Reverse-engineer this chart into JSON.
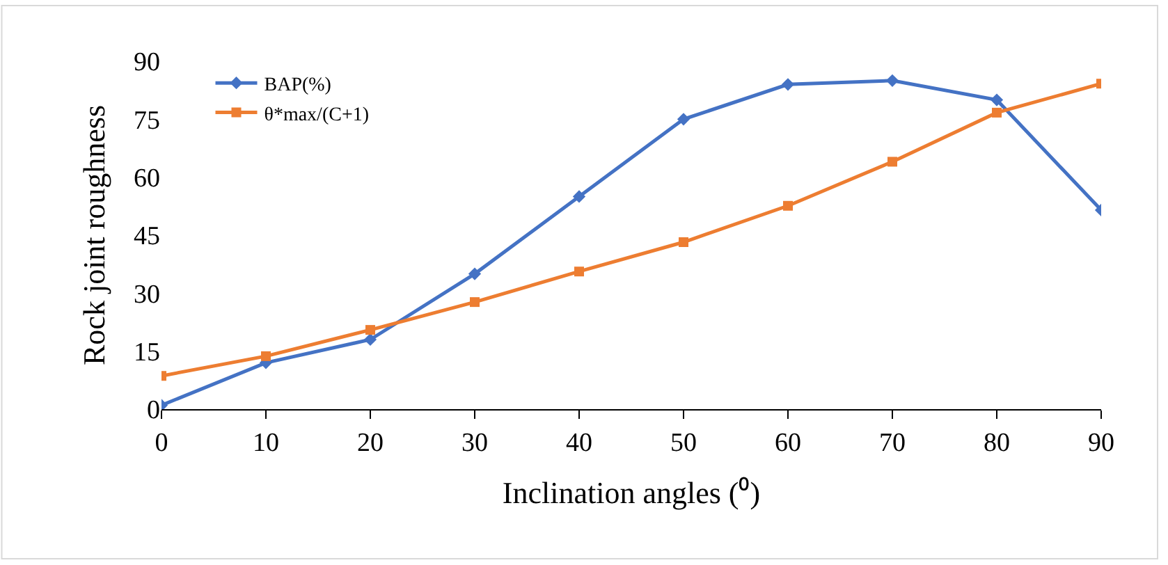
{
  "chart_data": {
    "type": "line",
    "xlabel": "Inclination angles (⁰)",
    "ylabel": "Rock joint roughness",
    "x": [
      0,
      10,
      20,
      30,
      40,
      50,
      60,
      70,
      80,
      90
    ],
    "series": [
      {
        "name": "BAP(%)",
        "color": "#4472c4",
        "marker": "diamond",
        "values": [
          1,
          12,
          18,
          35,
          55,
          75,
          84,
          85,
          80,
          51.5
        ]
      },
      {
        "name": "θ*max/(C+1)",
        "color": "#ed7d31",
        "marker": "square",
        "values": [
          8.6,
          13.7,
          20.5,
          27.7,
          35.6,
          43.2,
          52.6,
          64,
          76.7,
          84.2
        ]
      }
    ],
    "xlim": [
      0,
      90
    ],
    "xticks": [
      0,
      10,
      20,
      30,
      40,
      50,
      60,
      70,
      80,
      90
    ],
    "ylim": [
      0,
      90
    ],
    "yticks": [
      0,
      15,
      30,
      45,
      60,
      75,
      90
    ],
    "grid": false,
    "legend": "top left",
    "line_style": "solid"
  }
}
